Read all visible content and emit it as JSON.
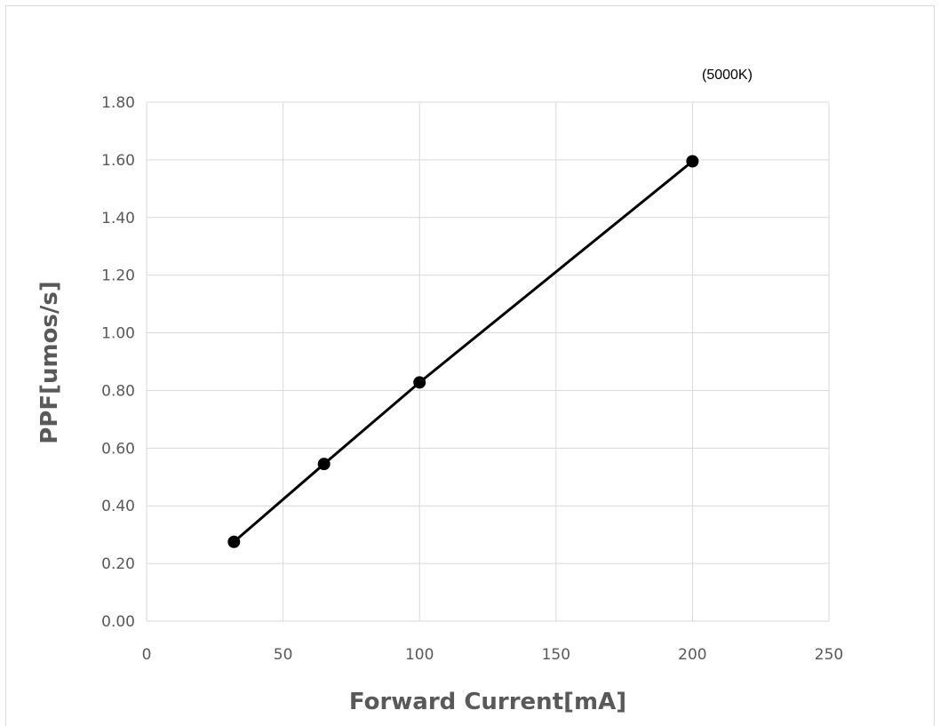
{
  "chart_data": {
    "type": "line",
    "title": "",
    "annotation": "(5000K)",
    "xlabel": "Forward Current[mA]",
    "ylabel": "PPF[umos/s]",
    "xlim": [
      0,
      250
    ],
    "ylim": [
      0,
      1.8
    ],
    "xticks": [
      "0",
      "50",
      "100",
      "150",
      "200",
      "250"
    ],
    "yticks": [
      "0.00",
      "0.20",
      "0.40",
      "0.60",
      "0.80",
      "1.00",
      "1.20",
      "1.40",
      "1.60",
      "1.80"
    ],
    "grid": true,
    "series": [
      {
        "x": [
          32,
          65,
          100,
          200
        ],
        "y": [
          0.275,
          0.545,
          0.828,
          1.595
        ],
        "color": "#000000",
        "marker": "circle"
      }
    ]
  }
}
